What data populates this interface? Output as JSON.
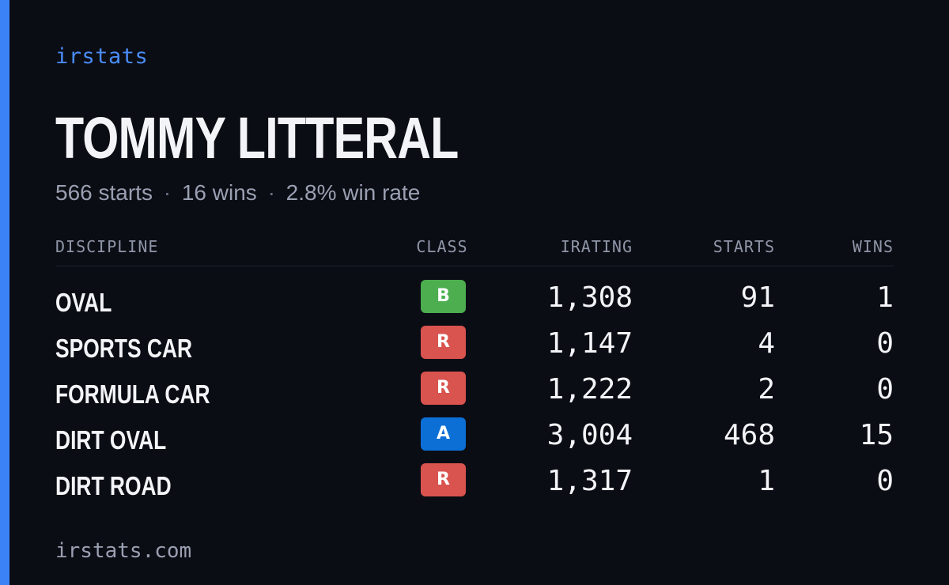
{
  "brand": "irstats",
  "driver_name": "TOMMY LITTERAL",
  "summary": {
    "starts": "566 starts",
    "wins": "16 wins",
    "win_rate": "2.8% win rate",
    "separator": "·"
  },
  "columns": {
    "discipline": "DISCIPLINE",
    "class": "CLASS",
    "irating": "IRATING",
    "starts": "STARTS",
    "wins": "WINS"
  },
  "rows": [
    {
      "discipline": "OVAL",
      "class": "B",
      "irating": "1,308",
      "starts": "91",
      "wins": "1"
    },
    {
      "discipline": "SPORTS CAR",
      "class": "R",
      "irating": "1,147",
      "starts": "4",
      "wins": "0"
    },
    {
      "discipline": "FORMULA CAR",
      "class": "R",
      "irating": "1,222",
      "starts": "2",
      "wins": "0"
    },
    {
      "discipline": "DIRT OVAL",
      "class": "A",
      "irating": "3,004",
      "starts": "468",
      "wins": "15"
    },
    {
      "discipline": "DIRT ROAD",
      "class": "R",
      "irating": "1,317",
      "starts": "1",
      "wins": "0"
    }
  ],
  "class_colors": {
    "A": "#0b6fd6",
    "B": "#4cae4f",
    "R": "#d9534f"
  },
  "accent_color": "#3b82f6",
  "footer": "irstats.com"
}
